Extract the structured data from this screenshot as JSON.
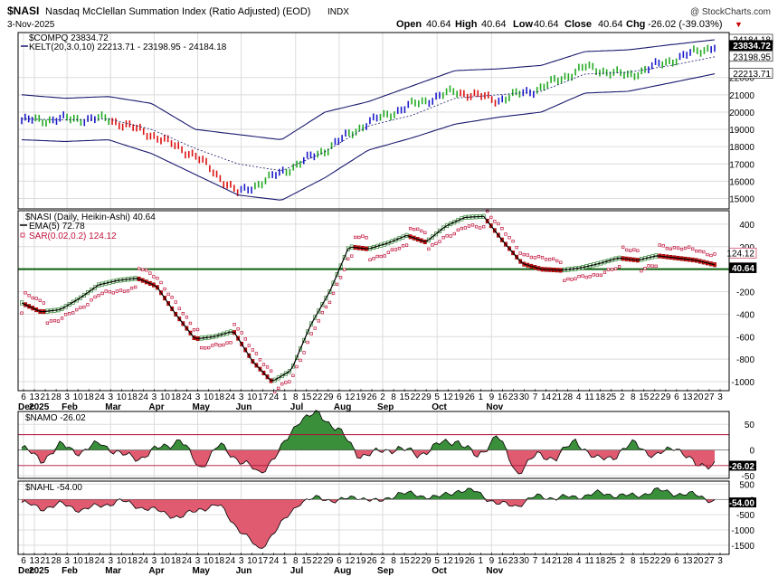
{
  "header": {
    "symbol": "$NASI",
    "description": "Nasdaq McClellan Summation Index (Ratio Adjusted) (EOD)",
    "exchange": "INDX",
    "date": "3-Nov-2025",
    "copyright": "@ StockCharts.com",
    "ohlc": {
      "open_label": "Open",
      "open": "40.64",
      "high_label": "High",
      "high": "40.64",
      "low_label": "Low",
      "low": "40.64",
      "close_label": "Close",
      "close": "40.64",
      "chg_label": "Chg",
      "chg": "-26.02 (-39.03%)",
      "chg_arrow": "▼"
    }
  },
  "colors": {
    "up": "#22aa22",
    "down": "#dd1111",
    "blue_bar": "#1a1acc",
    "band": "#1a1a6e",
    "sar": "#c0113a",
    "ema": "#000000",
    "zero": "#0b5d0b",
    "pos_fill": "#3a8f3a",
    "neg_fill": "#e05a70",
    "grid": "#dcdcdc",
    "threshold": "#b0103a"
  },
  "x_axis": {
    "labels": [
      "6",
      "13",
      "21",
      "28",
      "3",
      "10",
      "18",
      "24",
      "3",
      "10",
      "18",
      "24",
      "3",
      "10",
      "18",
      "24",
      "3",
      "10",
      "18",
      "24",
      "3",
      "10",
      "17",
      "24",
      "1",
      "8",
      "15",
      "22",
      "29",
      "6",
      "12",
      "19",
      "26",
      "2",
      "8",
      "15",
      "22",
      "29",
      "5",
      "12",
      "19",
      "26",
      "1",
      "9",
      "16",
      "23",
      "30",
      "7",
      "14",
      "21",
      "28",
      "4",
      "11",
      "18",
      "25",
      "2",
      "8",
      "15",
      "22",
      "29",
      "6",
      "13",
      "20",
      "27",
      "3"
    ],
    "months": [
      {
        "label": "Dec",
        "index": 0
      },
      {
        "label": "2025",
        "index": 1
      },
      {
        "label": "Feb",
        "index": 4
      },
      {
        "label": "Mar",
        "index": 8
      },
      {
        "label": "Apr",
        "index": 12
      },
      {
        "label": "May",
        "index": 16
      },
      {
        "label": "Jun",
        "index": 20
      },
      {
        "label": "Jul",
        "index": 25
      },
      {
        "label": "Aug",
        "index": 29
      },
      {
        "label": "Sep",
        "index": 33
      },
      {
        "label": "Oct",
        "index": 38
      },
      {
        "label": "Nov",
        "index": 43
      }
    ]
  },
  "chart_data": [
    {
      "type": "line",
      "title": "$COMPQ 23834.72",
      "indicator_label": "KELT(20,3.0,10) 22213.71 - 23198.95 - 24184.18",
      "ylim": [
        14400,
        24600
      ],
      "y_ticks": [
        "15000",
        "16000",
        "17000",
        "18000",
        "19000",
        "20000",
        "21000",
        "22000"
      ],
      "last_value_labels": [
        "24184.18",
        "23834.72",
        "23198.95",
        "22213.71"
      ],
      "x": [
        "Dec 6",
        "Jan 1",
        "Feb 1",
        "Mar 1",
        "Apr 1",
        "Apr 8",
        "Apr 15",
        "May 1",
        "Jun 1",
        "Jul 1",
        "Aug 1",
        "Aug 8",
        "Sep 1",
        "Oct 1",
        "Oct 10",
        "Oct 20",
        "Nov 3"
      ],
      "series": [
        {
          "name": "$COMPQ",
          "values": [
            19500,
            19600,
            19600,
            18700,
            17500,
            15300,
            16500,
            17800,
            19400,
            20400,
            21200,
            20700,
            21400,
            22600,
            22100,
            23000,
            23834
          ]
        },
        {
          "name": "Upper",
          "values": [
            21000,
            20800,
            20900,
            20500,
            19000,
            18700,
            18400,
            20000,
            20600,
            21500,
            22400,
            22500,
            22700,
            23500,
            23600,
            23900,
            24184
          ]
        },
        {
          "name": "Middle",
          "values": [
            19600,
            19550,
            19600,
            19000,
            17900,
            17000,
            16600,
            17700,
            19200,
            19800,
            20800,
            21000,
            21200,
            22200,
            22300,
            22700,
            23199
          ]
        },
        {
          "name": "Lower",
          "values": [
            18400,
            18300,
            18400,
            17600,
            16400,
            15200,
            14900,
            16200,
            17800,
            18500,
            19300,
            19700,
            20000,
            21100,
            21200,
            21700,
            22214
          ]
        }
      ]
    },
    {
      "type": "line",
      "title": "$NASI (Daily, Heikin-Ashi) 40.64",
      "legend": [
        {
          "label": "EMA(5) 72.78"
        },
        {
          "label": "SAR(0.02,0.2) 124.12"
        }
      ],
      "ylim": [
        -1080,
        520
      ],
      "y_ticks": [
        "400",
        "200",
        "-200",
        "-400",
        "-600",
        "-800",
        "-1000"
      ],
      "last_value_labels": [
        "124.12",
        "40.64"
      ],
      "x": [
        "Dec 6",
        "Dec 20",
        "Jan 3",
        "Jan 10",
        "Jan 20",
        "Feb 1",
        "Feb 10",
        "Feb 20",
        "Mar 1",
        "Mar 10",
        "Mar 20",
        "Apr 1",
        "Apr 8",
        "Apr 15",
        "Apr 22",
        "May 1",
        "May 10",
        "May 20",
        "Jun 1",
        "Jun 10",
        "Jun 20",
        "Jul 1",
        "Jul 10",
        "Jul 20",
        "Jul 28",
        "Aug 1",
        "Aug 8",
        "Aug 15",
        "Aug 22",
        "Sep 1",
        "Sep 10",
        "Sep 20",
        "Oct 1",
        "Oct 10",
        "Oct 20",
        "Oct 28",
        "Nov 3"
      ],
      "values": [
        -300,
        -380,
        -360,
        -260,
        -140,
        -100,
        -80,
        -150,
        -400,
        -620,
        -600,
        -550,
        -820,
        -1000,
        -900,
        -500,
        -200,
        200,
        180,
        230,
        300,
        240,
        380,
        460,
        470,
        250,
        50,
        0,
        -10,
        10,
        50,
        100,
        80,
        120,
        100,
        80,
        40
      ]
    },
    {
      "type": "area",
      "title": "$NAMO -26.02",
      "ylim": [
        -55,
        75
      ],
      "y_ticks": [
        "50",
        "0",
        "-50"
      ],
      "threshold_lines": [
        30,
        -30
      ],
      "last_value_label": "-26.02",
      "values": [
        5,
        -20,
        10,
        -5,
        15,
        -10,
        -15,
        5,
        20,
        -35,
        10,
        -20,
        -45,
        -5,
        60,
        70,
        40,
        -10,
        -5,
        5,
        -10,
        10,
        20,
        -15,
        30,
        -45,
        -10,
        -15,
        20,
        -20,
        -10,
        15,
        -15,
        10,
        -30,
        -26
      ]
    },
    {
      "type": "area",
      "title": "$NAHL -54.00",
      "ylim": [
        -1800,
        600
      ],
      "y_ticks": [
        "500",
        "0",
        "-500",
        "-1000",
        "-1500"
      ],
      "last_value_label": "-54.00",
      "values": [
        -100,
        -300,
        -150,
        -350,
        -200,
        -50,
        -250,
        -400,
        -600,
        -300,
        -200,
        -1000,
        -1650,
        -900,
        -100,
        50,
        -50,
        100,
        -100,
        200,
        150,
        50,
        300,
        250,
        -150,
        -200,
        100,
        50,
        80,
        200,
        150,
        100,
        300,
        200,
        150,
        -54
      ]
    }
  ]
}
